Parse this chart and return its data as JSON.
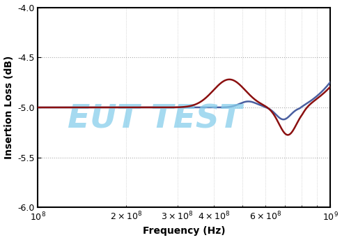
{
  "title": "",
  "xlabel": "Frequency (Hz)",
  "ylabel": "Insertion Loss (dB)",
  "xlim_log": [
    8,
    9.0
  ],
  "ylim": [
    -6.0,
    -4.0
  ],
  "yticks": [
    -6.0,
    -5.5,
    -5.0,
    -4.5,
    -4.0
  ],
  "line_color_red": "#8B1010",
  "line_color_blue": "#4A5FA0",
  "watermark_text": "EUT TEST",
  "watermark_color": "#87CEEB",
  "watermark_alpha": 0.75,
  "bg_color": "#ffffff",
  "grid_color": "#aaaaaa",
  "grid_style": ":"
}
